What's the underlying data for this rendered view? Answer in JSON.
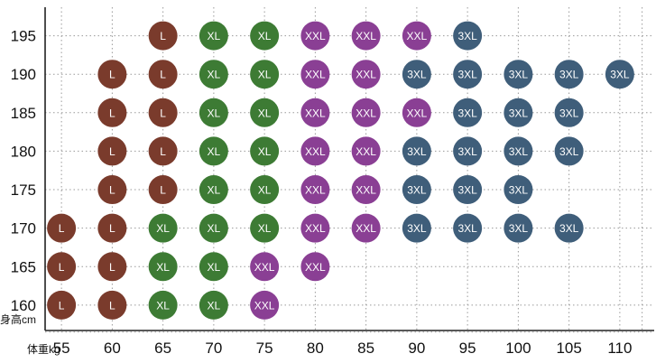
{
  "chart_data": {
    "type": "scatter",
    "title": "",
    "xlabel": "体重kg",
    "ylabel": "身高cm",
    "x_ticks": [
      55,
      60,
      65,
      70,
      75,
      80,
      85,
      90,
      95,
      100,
      105,
      110
    ],
    "y_ticks": [
      160,
      165,
      170,
      175,
      180,
      185,
      190,
      195
    ],
    "xlim": [
      52.5,
      112.5
    ],
    "ylim": [
      156,
      198
    ],
    "grid": true,
    "size_colors": {
      "L": "#7a3b2c",
      "XL": "#3d7b34",
      "XXL": "#8a3f94",
      "3XL": "#3f5e7a"
    },
    "points": [
      {
        "x": 65,
        "y": 195,
        "size": "L"
      },
      {
        "x": 70,
        "y": 195,
        "size": "XL"
      },
      {
        "x": 75,
        "y": 195,
        "size": "XL"
      },
      {
        "x": 80,
        "y": 195,
        "size": "XXL"
      },
      {
        "x": 85,
        "y": 195,
        "size": "XXL"
      },
      {
        "x": 90,
        "y": 195,
        "size": "XXL"
      },
      {
        "x": 95,
        "y": 195,
        "size": "3XL"
      },
      {
        "x": 60,
        "y": 190,
        "size": "L"
      },
      {
        "x": 65,
        "y": 190,
        "size": "L"
      },
      {
        "x": 70,
        "y": 190,
        "size": "XL"
      },
      {
        "x": 75,
        "y": 190,
        "size": "XL"
      },
      {
        "x": 80,
        "y": 190,
        "size": "XXL"
      },
      {
        "x": 85,
        "y": 190,
        "size": "XXL"
      },
      {
        "x": 90,
        "y": 190,
        "size": "3XL"
      },
      {
        "x": 95,
        "y": 190,
        "size": "3XL"
      },
      {
        "x": 100,
        "y": 190,
        "size": "3XL"
      },
      {
        "x": 105,
        "y": 190,
        "size": "3XL"
      },
      {
        "x": 110,
        "y": 190,
        "size": "3XL"
      },
      {
        "x": 60,
        "y": 185,
        "size": "L"
      },
      {
        "x": 65,
        "y": 185,
        "size": "L"
      },
      {
        "x": 70,
        "y": 185,
        "size": "XL"
      },
      {
        "x": 75,
        "y": 185,
        "size": "XL"
      },
      {
        "x": 80,
        "y": 185,
        "size": "XXL"
      },
      {
        "x": 85,
        "y": 185,
        "size": "XXL"
      },
      {
        "x": 90,
        "y": 185,
        "size": "XXL"
      },
      {
        "x": 95,
        "y": 185,
        "size": "3XL"
      },
      {
        "x": 100,
        "y": 185,
        "size": "3XL"
      },
      {
        "x": 105,
        "y": 185,
        "size": "3XL"
      },
      {
        "x": 60,
        "y": 180,
        "size": "L"
      },
      {
        "x": 65,
        "y": 180,
        "size": "L"
      },
      {
        "x": 70,
        "y": 180,
        "size": "XL"
      },
      {
        "x": 75,
        "y": 180,
        "size": "XL"
      },
      {
        "x": 80,
        "y": 180,
        "size": "XXL"
      },
      {
        "x": 85,
        "y": 180,
        "size": "XXL"
      },
      {
        "x": 90,
        "y": 180,
        "size": "3XL"
      },
      {
        "x": 95,
        "y": 180,
        "size": "3XL"
      },
      {
        "x": 100,
        "y": 180,
        "size": "3XL"
      },
      {
        "x": 105,
        "y": 180,
        "size": "3XL"
      },
      {
        "x": 60,
        "y": 175,
        "size": "L"
      },
      {
        "x": 65,
        "y": 175,
        "size": "L"
      },
      {
        "x": 70,
        "y": 175,
        "size": "XL"
      },
      {
        "x": 75,
        "y": 175,
        "size": "XL"
      },
      {
        "x": 80,
        "y": 175,
        "size": "XXL"
      },
      {
        "x": 85,
        "y": 175,
        "size": "XXL"
      },
      {
        "x": 90,
        "y": 175,
        "size": "3XL"
      },
      {
        "x": 95,
        "y": 175,
        "size": "3XL"
      },
      {
        "x": 100,
        "y": 175,
        "size": "3XL"
      },
      {
        "x": 55,
        "y": 170,
        "size": "L"
      },
      {
        "x": 60,
        "y": 170,
        "size": "L"
      },
      {
        "x": 65,
        "y": 170,
        "size": "XL"
      },
      {
        "x": 70,
        "y": 170,
        "size": "XL"
      },
      {
        "x": 75,
        "y": 170,
        "size": "XL"
      },
      {
        "x": 80,
        "y": 170,
        "size": "XXL"
      },
      {
        "x": 85,
        "y": 170,
        "size": "XXL"
      },
      {
        "x": 90,
        "y": 170,
        "size": "3XL"
      },
      {
        "x": 95,
        "y": 170,
        "size": "3XL"
      },
      {
        "x": 100,
        "y": 170,
        "size": "3XL"
      },
      {
        "x": 105,
        "y": 170,
        "size": "3XL"
      },
      {
        "x": 55,
        "y": 165,
        "size": "L"
      },
      {
        "x": 60,
        "y": 165,
        "size": "L"
      },
      {
        "x": 65,
        "y": 165,
        "size": "XL"
      },
      {
        "x": 70,
        "y": 165,
        "size": "XL"
      },
      {
        "x": 75,
        "y": 165,
        "size": "XXL"
      },
      {
        "x": 80,
        "y": 165,
        "size": "XXL"
      },
      {
        "x": 55,
        "y": 160,
        "size": "L"
      },
      {
        "x": 60,
        "y": 160,
        "size": "L"
      },
      {
        "x": 65,
        "y": 160,
        "size": "XL"
      },
      {
        "x": 70,
        "y": 160,
        "size": "XL"
      },
      {
        "x": 75,
        "y": 160,
        "size": "XXL"
      }
    ]
  }
}
